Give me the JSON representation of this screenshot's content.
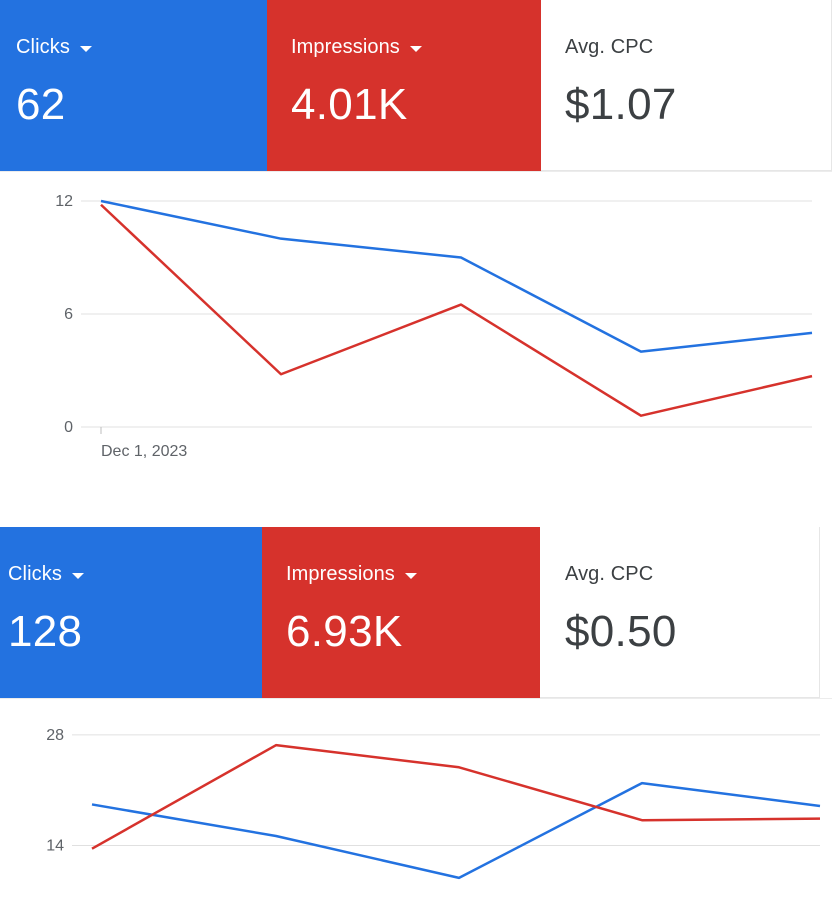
{
  "panels": [
    {
      "metrics": {
        "clicks": {
          "label": "Clicks",
          "value": "62"
        },
        "impressions": {
          "label": "Impressions",
          "value": "4.01K"
        },
        "avg_cpc": {
          "label": "Avg. CPC",
          "value": "$1.07"
        }
      }
    },
    {
      "metrics": {
        "clicks": {
          "label": "Clicks",
          "value": "128"
        },
        "impressions": {
          "label": "Impressions",
          "value": "6.93K"
        },
        "avg_cpc": {
          "label": "Avg. CPC",
          "value": "$0.50"
        }
      }
    }
  ],
  "colors": {
    "clicks": "#2372e0",
    "impressions": "#d6322c",
    "grid": "#e0e0e0",
    "axis_text": "#5f6368"
  },
  "chart_data": [
    {
      "type": "line",
      "x": [
        "Dec 1, 2023",
        "",
        "",
        "",
        ""
      ],
      "x_tick_labels": [
        "Dec 1, 2023"
      ],
      "y_ticks": [
        0,
        6,
        12
      ],
      "ylim": [
        0,
        12
      ],
      "grid": true,
      "series": [
        {
          "color": "#2372e0",
          "values": [
            12,
            10,
            9,
            4,
            5
          ]
        },
        {
          "color": "#d6322c",
          "values": [
            11.8,
            2.8,
            6.5,
            0.6,
            2.7
          ]
        }
      ]
    },
    {
      "type": "line",
      "x": [
        "",
        "",
        "",
        "",
        ""
      ],
      "x_tick_labels": [],
      "y_ticks": [
        14,
        28
      ],
      "ylim": [
        9,
        29
      ],
      "grid": true,
      "series": [
        {
          "color": "#2372e0",
          "values": [
            19.2,
            15.2,
            9.9,
            21.9,
            19.0
          ]
        },
        {
          "color": "#d6322c",
          "values": [
            13.6,
            26.7,
            23.9,
            17.2,
            17.4
          ]
        }
      ]
    }
  ]
}
